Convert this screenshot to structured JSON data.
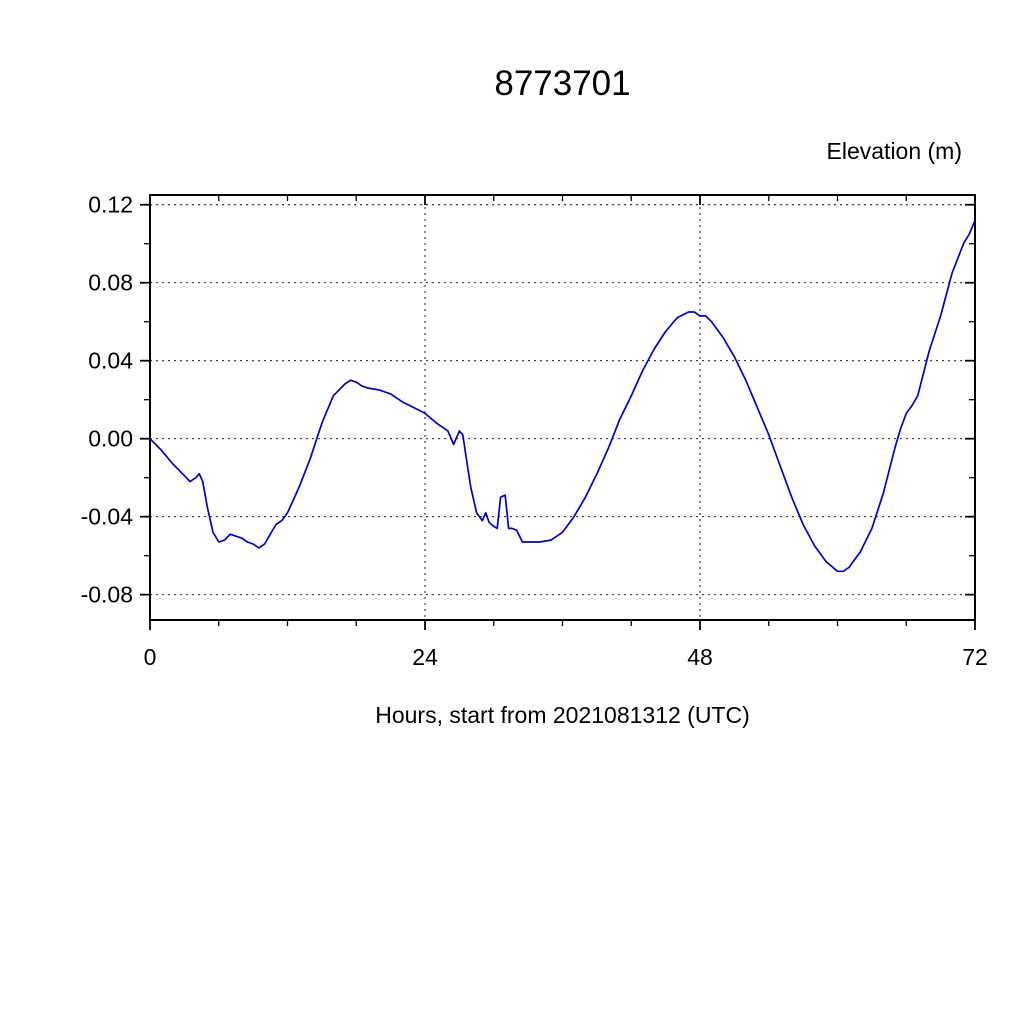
{
  "chart_data": {
    "type": "line",
    "title": "8773701",
    "ylabel": "Elevation (m)",
    "xlabel": "Hours, start from 2021081312 (UTC)",
    "xlim": [
      0,
      72
    ],
    "ylim": [
      -0.093,
      0.125
    ],
    "xticks": [
      0,
      24,
      48,
      72
    ],
    "xtick_labels": [
      "0",
      "24",
      "48",
      "72"
    ],
    "x_minor_step": 6,
    "yticks": [
      0.12,
      0.08,
      0.04,
      0.0,
      -0.04,
      -0.08
    ],
    "ytick_labels": [
      "0.12",
      "0.08",
      "0.04",
      "0.00",
      "-0.04",
      "-0.08"
    ],
    "y_minor_step": 0.02,
    "grid": true,
    "grid_x": [
      24,
      48
    ],
    "line_color": "#0000cc",
    "frame_color": "#000000",
    "series": [
      {
        "name": "elevation",
        "x": [
          0,
          1,
          2,
          3,
          3.5,
          4,
          4.3,
          4.6,
          5,
          5.5,
          6,
          6.5,
          7,
          7.5,
          8,
          8.5,
          9,
          9.5,
          10,
          10.5,
          11,
          11.5,
          12,
          13,
          14,
          15,
          16,
          17,
          17.5,
          18,
          18.5,
          19,
          20,
          21,
          22,
          23,
          24,
          25,
          26,
          26.5,
          27,
          27.3,
          27.6,
          28,
          28.5,
          29,
          29.3,
          29.6,
          30,
          30.3,
          30.6,
          31,
          31.3,
          31.6,
          32,
          32.5,
          33,
          34,
          35,
          36,
          37,
          38,
          39,
          40,
          41,
          42,
          43,
          44,
          45,
          46,
          47,
          47.5,
          48,
          48.5,
          49,
          50,
          51,
          52,
          53,
          54,
          55,
          56,
          57,
          58,
          59,
          60,
          60.5,
          61,
          62,
          63,
          64,
          65,
          65.5,
          66,
          66.5,
          67,
          68,
          69,
          70,
          71,
          71.5,
          72
        ],
        "y": [
          0.0,
          -0.006,
          -0.013,
          -0.019,
          -0.022,
          -0.02,
          -0.018,
          -0.022,
          -0.035,
          -0.048,
          -0.053,
          -0.052,
          -0.049,
          -0.05,
          -0.051,
          -0.053,
          -0.054,
          -0.056,
          -0.054,
          -0.049,
          -0.044,
          -0.042,
          -0.038,
          -0.025,
          -0.01,
          0.008,
          0.022,
          0.028,
          0.03,
          0.029,
          0.027,
          0.026,
          0.025,
          0.023,
          0.019,
          0.016,
          0.013,
          0.008,
          0.004,
          -0.003,
          0.004,
          0.002,
          -0.01,
          -0.025,
          -0.038,
          -0.042,
          -0.038,
          -0.043,
          -0.045,
          -0.046,
          -0.03,
          -0.029,
          -0.046,
          -0.046,
          -0.047,
          -0.053,
          -0.053,
          -0.053,
          -0.052,
          -0.048,
          -0.04,
          -0.03,
          -0.018,
          -0.005,
          0.01,
          0.022,
          0.035,
          0.046,
          0.055,
          0.062,
          0.065,
          0.065,
          0.063,
          0.063,
          0.06,
          0.052,
          0.042,
          0.03,
          0.016,
          0.002,
          -0.014,
          -0.03,
          -0.044,
          -0.055,
          -0.063,
          -0.068,
          -0.068,
          -0.066,
          -0.058,
          -0.046,
          -0.028,
          -0.005,
          0.005,
          0.013,
          0.017,
          0.022,
          0.045,
          0.063,
          0.085,
          0.1,
          0.105,
          0.112
        ]
      }
    ]
  }
}
